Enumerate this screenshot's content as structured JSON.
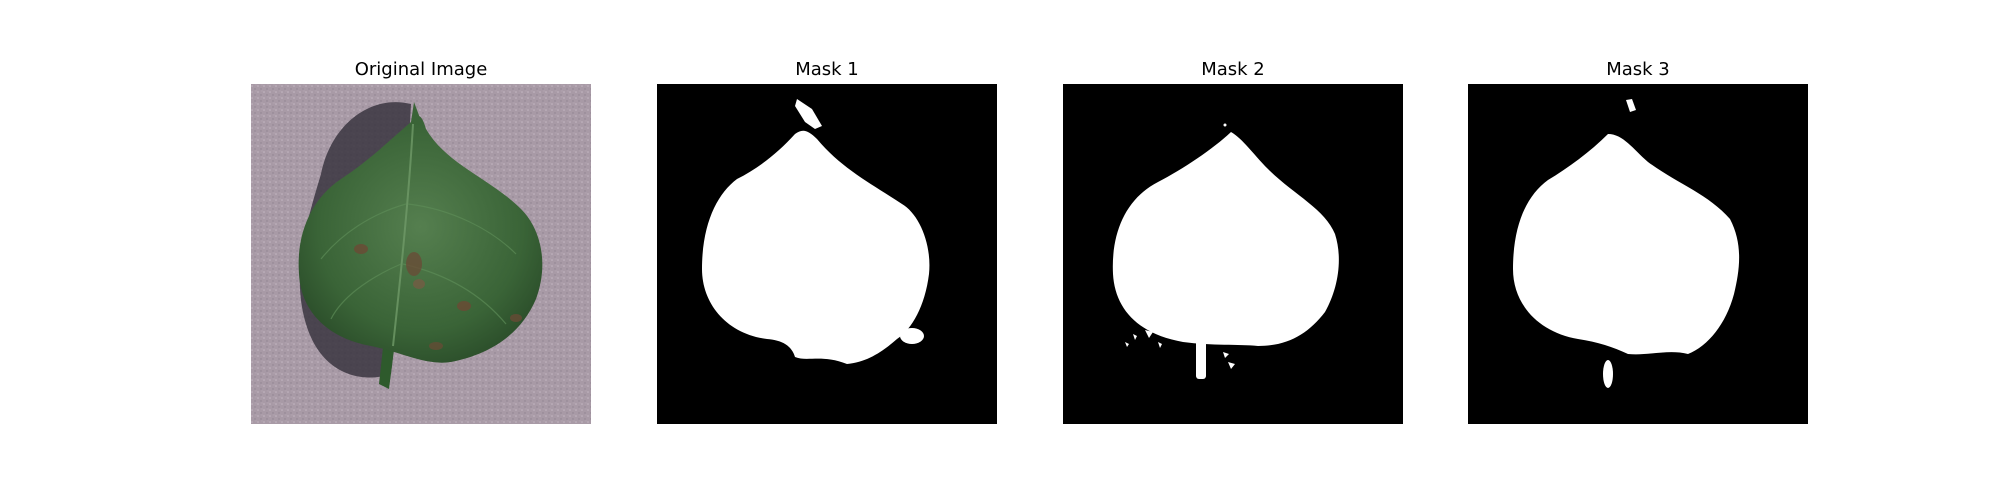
{
  "figure": {
    "panels": [
      {
        "title": "Original Image",
        "content": "leaf-photo"
      },
      {
        "title": "Mask 1",
        "content": "binary-mask"
      },
      {
        "title": "Mask 2",
        "content": "binary-mask"
      },
      {
        "title": "Mask 3",
        "content": "binary-mask"
      }
    ]
  },
  "colors": {
    "background": "#ffffff",
    "mask_background": "#000000",
    "mask_foreground": "#ffffff",
    "photo_background": "#a89aa6",
    "leaf_green": "#3f6a3c",
    "lesion_brown": "#6b4a35"
  }
}
